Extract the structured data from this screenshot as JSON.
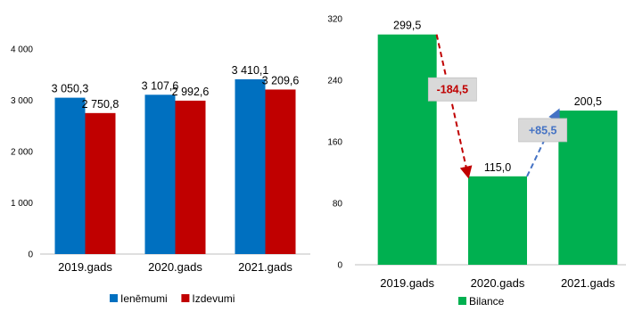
{
  "chart_data": [
    {
      "type": "bar",
      "categories": [
        "2019.gads",
        "2020.gads",
        "2021.gads"
      ],
      "series": [
        {
          "name": "Ienēmumi",
          "values": [
            3050.3,
            3107.6,
            3410.1
          ],
          "labels": [
            "3 050,3",
            "3 107,6",
            "3 410,1"
          ],
          "color": "#0070C0"
        },
        {
          "name": "Izdevumi",
          "values": [
            2750.8,
            2992.6,
            3209.6
          ],
          "labels": [
            "2 750,8",
            "2 992,6",
            "3 209,6"
          ],
          "color": "#C00000"
        }
      ],
      "ylim": [
        0,
        4000
      ],
      "yticks": [
        0,
        1000,
        2000,
        3000,
        4000
      ],
      "ytick_labels": [
        "0",
        "1 000",
        "2 000",
        "3 000",
        "4 000"
      ],
      "legend": "bottom",
      "grid": false
    },
    {
      "type": "bar",
      "categories": [
        "2019.gads",
        "2020.gads",
        "2021.gads"
      ],
      "series": [
        {
          "name": "Bilance",
          "values": [
            299.5,
            115.0,
            200.5
          ],
          "labels": [
            "299,5",
            "115,0",
            "200,5"
          ],
          "color": "#00B050"
        }
      ],
      "ylim": [
        0,
        320
      ],
      "yticks": [
        0,
        80,
        160,
        240,
        320
      ],
      "ytick_labels": [
        "0",
        "80",
        "160",
        "240",
        "320"
      ],
      "legend": "bottom",
      "grid": false,
      "annotations": [
        {
          "text": "-184,5",
          "from": 0,
          "to": 1,
          "color": "#C00000"
        },
        {
          "text": "+85,5",
          "from": 1,
          "to": 2,
          "color": "#4472C4"
        }
      ]
    }
  ]
}
